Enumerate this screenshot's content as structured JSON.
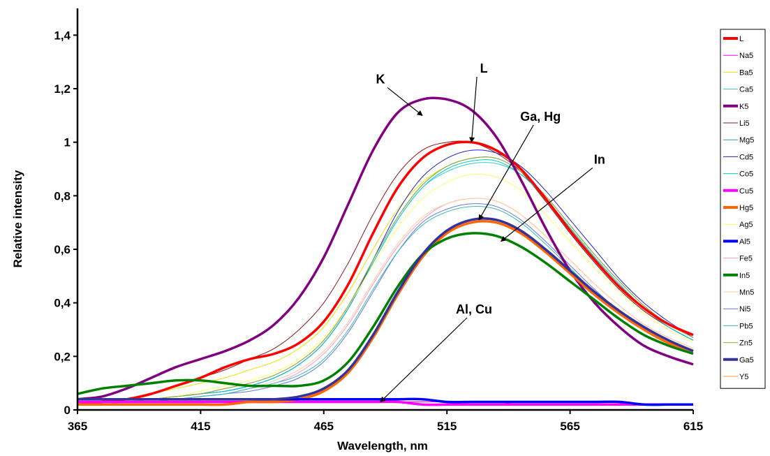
{
  "chart_data": {
    "type": "line",
    "xlabel": "Wavelength, nm",
    "ylabel": "Relative intensity",
    "xlim": [
      365,
      615
    ],
    "ylim": [
      0,
      1.5
    ],
    "x_ticks": [
      "365",
      "415",
      "465",
      "515",
      "565",
      "615"
    ],
    "y_ticks": [
      "0",
      "0,2",
      "0,4",
      "0,6",
      "0,8",
      "1",
      "1,2",
      "1,4"
    ],
    "y_tick_values": [
      0,
      0.2,
      0.4,
      0.6,
      0.8,
      1.0,
      1.2,
      1.4
    ],
    "grid": false,
    "legend_position": "right",
    "x": [
      365,
      375,
      385,
      395,
      405,
      415,
      425,
      435,
      445,
      455,
      465,
      475,
      485,
      495,
      505,
      515,
      525,
      535,
      545,
      555,
      565,
      575,
      585,
      595,
      605,
      615
    ],
    "series": [
      {
        "name": "L",
        "color": "#ff0000",
        "width": 3.5,
        "values": [
          0.02,
          0.03,
          0.04,
          0.06,
          0.09,
          0.12,
          0.16,
          0.19,
          0.21,
          0.25,
          0.33,
          0.47,
          0.66,
          0.83,
          0.94,
          0.99,
          1.0,
          0.97,
          0.9,
          0.79,
          0.67,
          0.56,
          0.46,
          0.38,
          0.32,
          0.28
        ]
      },
      {
        "name": "Na5",
        "color": "#ff00ff",
        "width": 1,
        "values": [
          0.03,
          0.03,
          0.03,
          0.03,
          0.03,
          0.03,
          0.03,
          0.03,
          0.03,
          0.03,
          0.03,
          0.03,
          0.03,
          0.03,
          0.03,
          0.03,
          0.03,
          0.03,
          0.02,
          0.02,
          0.02,
          0.02,
          0.02,
          0.02,
          0.02,
          0.02
        ]
      },
      {
        "name": "Ba5",
        "color": "#e6e600",
        "width": 1,
        "values": [
          0.02,
          0.03,
          0.04,
          0.06,
          0.08,
          0.1,
          0.12,
          0.15,
          0.18,
          0.23,
          0.31,
          0.44,
          0.6,
          0.75,
          0.85,
          0.91,
          0.94,
          0.94,
          0.89,
          0.79,
          0.68,
          0.57,
          0.47,
          0.38,
          0.31,
          0.26
        ]
      },
      {
        "name": "Ca5",
        "color": "#33cccc",
        "width": 1,
        "values": [
          0.02,
          0.03,
          0.03,
          0.04,
          0.05,
          0.06,
          0.07,
          0.09,
          0.12,
          0.17,
          0.25,
          0.38,
          0.55,
          0.71,
          0.83,
          0.89,
          0.92,
          0.92,
          0.88,
          0.79,
          0.68,
          0.57,
          0.47,
          0.38,
          0.31,
          0.26
        ]
      },
      {
        "name": "K5",
        "color": "#800080",
        "width": 3.5,
        "values": [
          0.04,
          0.05,
          0.08,
          0.12,
          0.16,
          0.19,
          0.22,
          0.26,
          0.32,
          0.42,
          0.57,
          0.77,
          0.97,
          1.11,
          1.16,
          1.16,
          1.12,
          1.02,
          0.86,
          0.68,
          0.52,
          0.4,
          0.31,
          0.24,
          0.2,
          0.17
        ]
      },
      {
        "name": "Li5",
        "color": "#8b1a1a",
        "width": 1,
        "values": [
          0.02,
          0.03,
          0.04,
          0.06,
          0.09,
          0.12,
          0.15,
          0.19,
          0.23,
          0.3,
          0.4,
          0.55,
          0.73,
          0.88,
          0.97,
          1.0,
          1.0,
          0.96,
          0.89,
          0.78,
          0.66,
          0.55,
          0.45,
          0.37,
          0.31,
          0.26
        ]
      },
      {
        "name": "Mg5",
        "color": "#339999",
        "width": 1,
        "values": [
          0.02,
          0.03,
          0.03,
          0.04,
          0.05,
          0.06,
          0.08,
          0.1,
          0.13,
          0.18,
          0.26,
          0.39,
          0.56,
          0.72,
          0.84,
          0.91,
          0.94,
          0.94,
          0.89,
          0.8,
          0.69,
          0.58,
          0.48,
          0.39,
          0.32,
          0.27
        ]
      },
      {
        "name": "Cd5",
        "color": "#2222cc",
        "width": 1,
        "values": [
          0.02,
          0.03,
          0.03,
          0.04,
          0.05,
          0.06,
          0.07,
          0.09,
          0.12,
          0.17,
          0.25,
          0.38,
          0.56,
          0.74,
          0.87,
          0.94,
          0.97,
          0.96,
          0.91,
          0.82,
          0.71,
          0.6,
          0.49,
          0.4,
          0.33,
          0.27
        ]
      },
      {
        "name": "Co5",
        "color": "#00cccc",
        "width": 1,
        "values": [
          0.02,
          0.03,
          0.03,
          0.04,
          0.05,
          0.06,
          0.07,
          0.09,
          0.12,
          0.17,
          0.25,
          0.38,
          0.55,
          0.71,
          0.83,
          0.9,
          0.93,
          0.93,
          0.88,
          0.79,
          0.68,
          0.57,
          0.47,
          0.38,
          0.31,
          0.26
        ]
      },
      {
        "name": "Cu5",
        "color": "#ff00ff",
        "width": 3.5,
        "values": [
          0.03,
          0.03,
          0.03,
          0.03,
          0.03,
          0.03,
          0.03,
          0.03,
          0.03,
          0.03,
          0.03,
          0.03,
          0.03,
          0.03,
          0.02,
          0.02,
          0.02,
          0.02,
          0.02,
          0.02,
          0.02,
          0.02,
          0.02,
          0.02,
          0.02,
          0.02
        ]
      },
      {
        "name": "Hg5",
        "color": "#ff6600",
        "width": 3.5,
        "values": [
          0.02,
          0.02,
          0.02,
          0.02,
          0.02,
          0.02,
          0.02,
          0.03,
          0.03,
          0.04,
          0.07,
          0.14,
          0.27,
          0.43,
          0.57,
          0.66,
          0.7,
          0.7,
          0.66,
          0.59,
          0.51,
          0.43,
          0.36,
          0.3,
          0.25,
          0.22
        ]
      },
      {
        "name": "Ag5",
        "color": "#ffff66",
        "width": 1,
        "values": [
          0.02,
          0.03,
          0.03,
          0.04,
          0.05,
          0.07,
          0.09,
          0.11,
          0.14,
          0.19,
          0.27,
          0.39,
          0.54,
          0.68,
          0.79,
          0.85,
          0.88,
          0.87,
          0.82,
          0.73,
          0.63,
          0.53,
          0.44,
          0.36,
          0.3,
          0.25
        ]
      },
      {
        "name": "Al5",
        "color": "#0000ff",
        "width": 3.5,
        "values": [
          0.04,
          0.04,
          0.04,
          0.04,
          0.04,
          0.04,
          0.04,
          0.04,
          0.04,
          0.04,
          0.04,
          0.04,
          0.04,
          0.04,
          0.04,
          0.03,
          0.03,
          0.03,
          0.03,
          0.03,
          0.03,
          0.03,
          0.03,
          0.02,
          0.02,
          0.02
        ]
      },
      {
        "name": "Fe5",
        "color": "#ff99cc",
        "width": 1,
        "values": [
          0.02,
          0.02,
          0.03,
          0.03,
          0.04,
          0.05,
          0.06,
          0.08,
          0.1,
          0.14,
          0.21,
          0.32,
          0.47,
          0.61,
          0.71,
          0.77,
          0.79,
          0.78,
          0.73,
          0.65,
          0.56,
          0.47,
          0.39,
          0.32,
          0.27,
          0.23
        ]
      },
      {
        "name": "In5",
        "color": "#008000",
        "width": 3.5,
        "values": [
          0.06,
          0.08,
          0.09,
          0.1,
          0.11,
          0.11,
          0.1,
          0.09,
          0.09,
          0.09,
          0.11,
          0.18,
          0.31,
          0.46,
          0.58,
          0.64,
          0.66,
          0.65,
          0.61,
          0.55,
          0.48,
          0.41,
          0.34,
          0.28,
          0.24,
          0.21
        ]
      },
      {
        "name": "Mn5",
        "color": "#ffcc99",
        "width": 1,
        "values": [
          0.02,
          0.02,
          0.03,
          0.03,
          0.04,
          0.05,
          0.06,
          0.08,
          0.11,
          0.15,
          0.22,
          0.33,
          0.48,
          0.62,
          0.72,
          0.77,
          0.79,
          0.78,
          0.73,
          0.65,
          0.56,
          0.47,
          0.39,
          0.32,
          0.27,
          0.23
        ]
      },
      {
        "name": "Ni5",
        "color": "#6677dd",
        "width": 1,
        "values": [
          0.02,
          0.02,
          0.03,
          0.03,
          0.04,
          0.05,
          0.06,
          0.07,
          0.09,
          0.12,
          0.18,
          0.29,
          0.44,
          0.59,
          0.7,
          0.75,
          0.77,
          0.76,
          0.71,
          0.63,
          0.54,
          0.45,
          0.37,
          0.31,
          0.26,
          0.22
        ]
      },
      {
        "name": "Pb5",
        "color": "#33bbbb",
        "width": 1,
        "values": [
          0.02,
          0.02,
          0.03,
          0.03,
          0.04,
          0.05,
          0.06,
          0.08,
          0.1,
          0.13,
          0.19,
          0.3,
          0.45,
          0.59,
          0.69,
          0.74,
          0.76,
          0.75,
          0.7,
          0.62,
          0.53,
          0.44,
          0.37,
          0.3,
          0.25,
          0.22
        ]
      },
      {
        "name": "Zn5",
        "color": "#99aa33",
        "width": 1,
        "values": [
          0.02,
          0.03,
          0.03,
          0.04,
          0.05,
          0.06,
          0.08,
          0.1,
          0.13,
          0.18,
          0.26,
          0.39,
          0.56,
          0.72,
          0.84,
          0.91,
          0.94,
          0.94,
          0.89,
          0.8,
          0.69,
          0.58,
          0.48,
          0.39,
          0.32,
          0.27
        ]
      },
      {
        "name": "Ga5",
        "color": "#333399",
        "width": 3.5,
        "values": [
          0.04,
          0.04,
          0.04,
          0.04,
          0.04,
          0.04,
          0.04,
          0.04,
          0.04,
          0.05,
          0.08,
          0.15,
          0.28,
          0.44,
          0.58,
          0.67,
          0.71,
          0.71,
          0.67,
          0.6,
          0.52,
          0.44,
          0.37,
          0.31,
          0.26,
          0.22
        ]
      },
      {
        "name": "Y5",
        "color": "#ff9933",
        "width": 1,
        "values": [
          0.02,
          0.02,
          0.02,
          0.02,
          0.02,
          0.02,
          0.02,
          0.03,
          0.03,
          0.04,
          0.07,
          0.14,
          0.27,
          0.43,
          0.57,
          0.66,
          0.7,
          0.7,
          0.66,
          0.59,
          0.51,
          0.43,
          0.36,
          0.3,
          0.25,
          0.22
        ]
      }
    ],
    "annotations": [
      {
        "text": "K",
        "x": 488,
        "y": 1.22,
        "arrow_to": [
          505,
          1.1
        ]
      },
      {
        "text": "L",
        "x": 530,
        "y": 1.26,
        "arrow_to": [
          525,
          1.0
        ]
      },
      {
        "text": "Ga, Hg",
        "x": 553,
        "y": 1.08,
        "arrow_to": [
          528,
          0.71
        ]
      },
      {
        "text": "In",
        "x": 577,
        "y": 0.92,
        "arrow_to": [
          537,
          0.63
        ]
      },
      {
        "text": "Al, Cu",
        "x": 526,
        "y": 0.36,
        "arrow_to": [
          488,
          0.03
        ]
      }
    ]
  }
}
